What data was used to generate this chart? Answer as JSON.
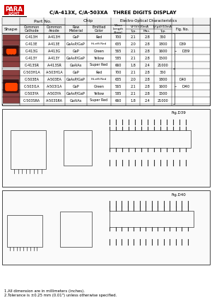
{
  "title": "C/A-413X, C/A-503XA   THREE DIGITS DISPLAY",
  "logo_text": "PARA",
  "logo_sub": "LIGHT",
  "header_cols": [
    "Shape",
    "Common\nCathode",
    "Common\nAnode",
    "Raw\nMaterial",
    "Emitted\nColor",
    "Wave\nLength\nλ(nm)",
    "Typ.",
    "Max.",
    "Typ.",
    "Fig. No."
  ],
  "subheader1": "Part No.",
  "subheader2": "Chip",
  "subheader3": "Electro-Optical Characteristics",
  "subheader3a": "VF(V)/20mA",
  "subheader3b": "Iv(μd)/10mA",
  "rows": [
    [
      "C-413H",
      "A-413H",
      "GaP",
      "Red",
      "700",
      "2.1",
      "2.8",
      "350",
      ""
    ],
    [
      "C-413E",
      "A-413E",
      "GaAsP/GaP",
      "Hi.effi Red",
      "635",
      "2.0",
      "2.8",
      "1800",
      "D39"
    ],
    [
      "C-413G",
      "A-413G",
      "GaP",
      "Green",
      "565",
      "2.1",
      "2.8",
      "1600",
      ""
    ],
    [
      "C-413Y",
      "A-413Y",
      "GaAsP/GaP",
      "Yellow",
      "585",
      "2.1",
      "2.8",
      "1500",
      ""
    ],
    [
      "C-413SR",
      "A-413SR",
      "GaAlAs",
      "Super Red",
      "660",
      "1.8",
      "2.4",
      "21000",
      ""
    ],
    [
      "C-503H1A",
      "A-503H1A",
      "GaP",
      "Red",
      "700",
      "2.1",
      "2.8",
      "350",
      ""
    ],
    [
      "C-503EA",
      "A-503EA",
      "GaAsP/GaP",
      "Hi.effi Red",
      "635",
      "2.0",
      "2.8",
      "1800",
      "D40"
    ],
    [
      "C-503I1A",
      "A-503I1A",
      "GaP",
      "Green",
      "565",
      "2.1",
      "2.8",
      "1600",
      ""
    ],
    [
      "C-503YA",
      "A-503YA",
      "GaAsP/GaP",
      "Yellow",
      "585",
      "2.1",
      "2.8",
      "1500",
      ""
    ],
    [
      "C-503SRA",
      "A-503SRA",
      "GaAlAs",
      "Super Red",
      "660",
      "1.8",
      "2.4",
      "21000",
      ""
    ]
  ],
  "fig_d39_label": "Fig.D39",
  "fig_d40_label": "Fig.D40",
  "note1": "1.All dimension are in millimeters (inches).",
  "note2": "2.Tolerance is ±0.25 mm (0.01\") unless otherwise specified.",
  "bg_color": "#ffffff",
  "table_border": "#000000",
  "header_bg": "#e8e8e8",
  "logo_red": "#cc0000",
  "display_red": "#cc3300"
}
